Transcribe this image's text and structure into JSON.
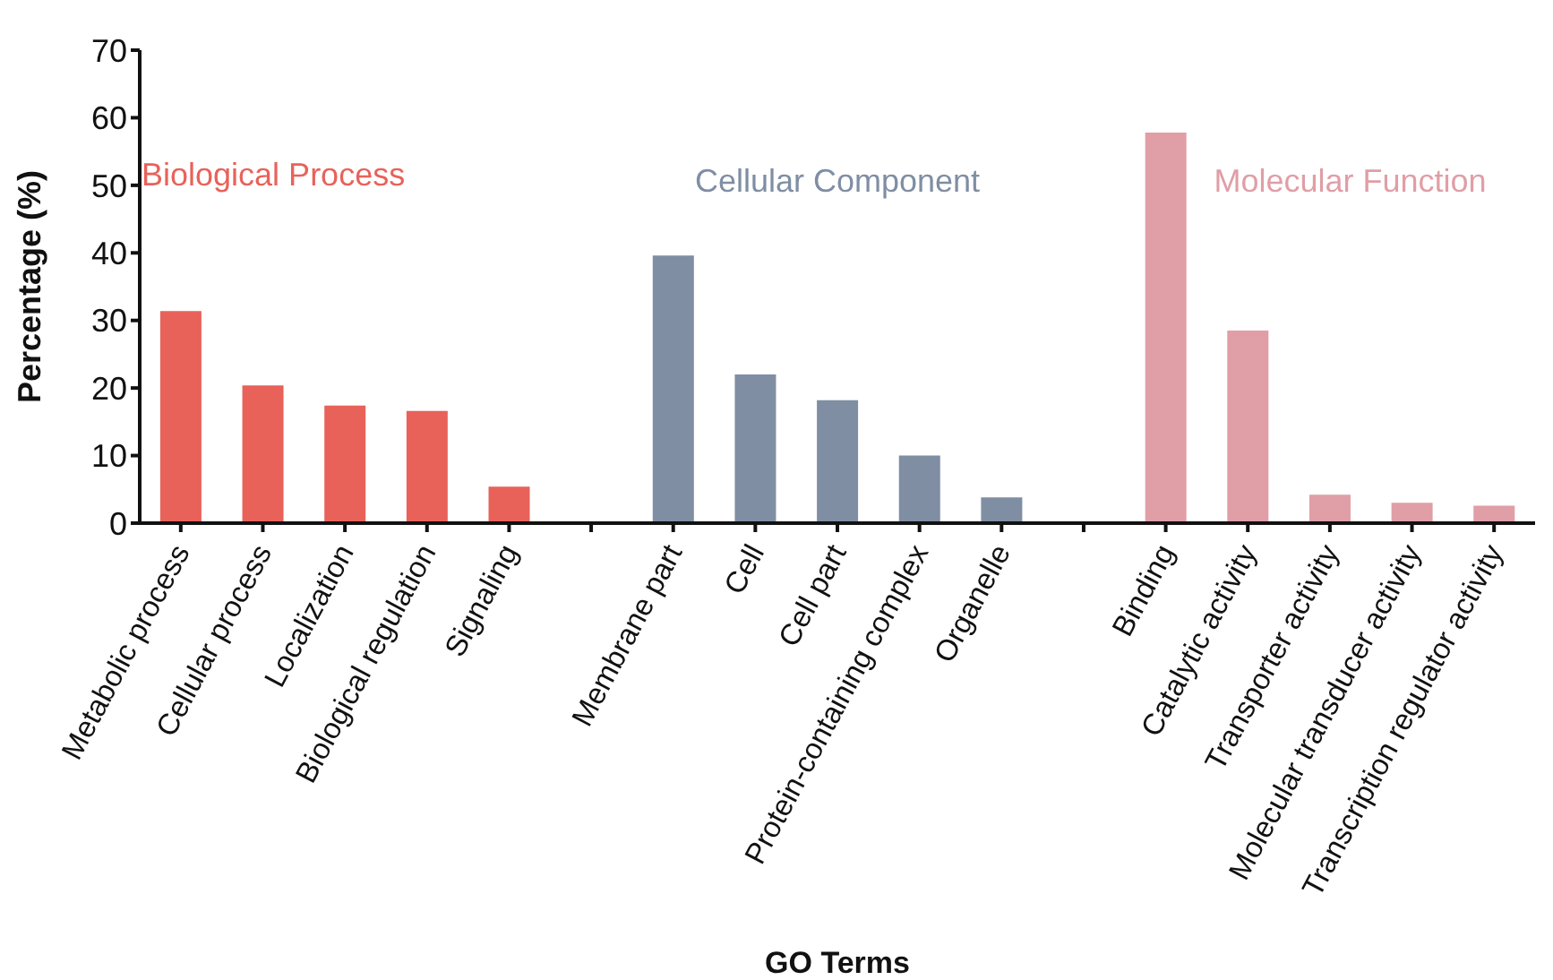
{
  "chart_data": {
    "type": "bar",
    "xlabel": "GO Terms",
    "ylabel": "Percentage (%)",
    "categories": [
      "Metabolic process",
      "Cellular process",
      "Localization",
      "Biological regulation",
      "Signaling",
      null,
      "Membrane part",
      "Cell",
      "Cell part",
      "Protein-containing complex",
      "Organelle",
      null,
      "Binding",
      "Catalytic activity",
      "Transporter activity",
      "Molecular transducer activity",
      "Transcription regulator activity"
    ],
    "series": [
      {
        "name": "Biological Process",
        "color": "#e8625a",
        "values": [
          31.4,
          20.4,
          17.4,
          16.6,
          5.4,
          null,
          null,
          null,
          null,
          null,
          null,
          null,
          null,
          null,
          null,
          null,
          null
        ]
      },
      {
        "name": "Cellular Component",
        "color": "#7f8ea3",
        "values": [
          null,
          null,
          null,
          null,
          null,
          null,
          39.6,
          22.0,
          18.2,
          10.0,
          3.8,
          null,
          null,
          null,
          null,
          null,
          null
        ]
      },
      {
        "name": "Molecular Function",
        "color": "#e09ea6",
        "values": [
          null,
          null,
          null,
          null,
          null,
          null,
          null,
          null,
          null,
          null,
          null,
          null,
          57.8,
          28.5,
          4.2,
          3.0,
          2.6
        ]
      }
    ],
    "ylim": [
      0,
      70
    ],
    "yticks": [
      0,
      10,
      20,
      30,
      40,
      50,
      60,
      70
    ],
    "grid": false,
    "legend": false
  }
}
